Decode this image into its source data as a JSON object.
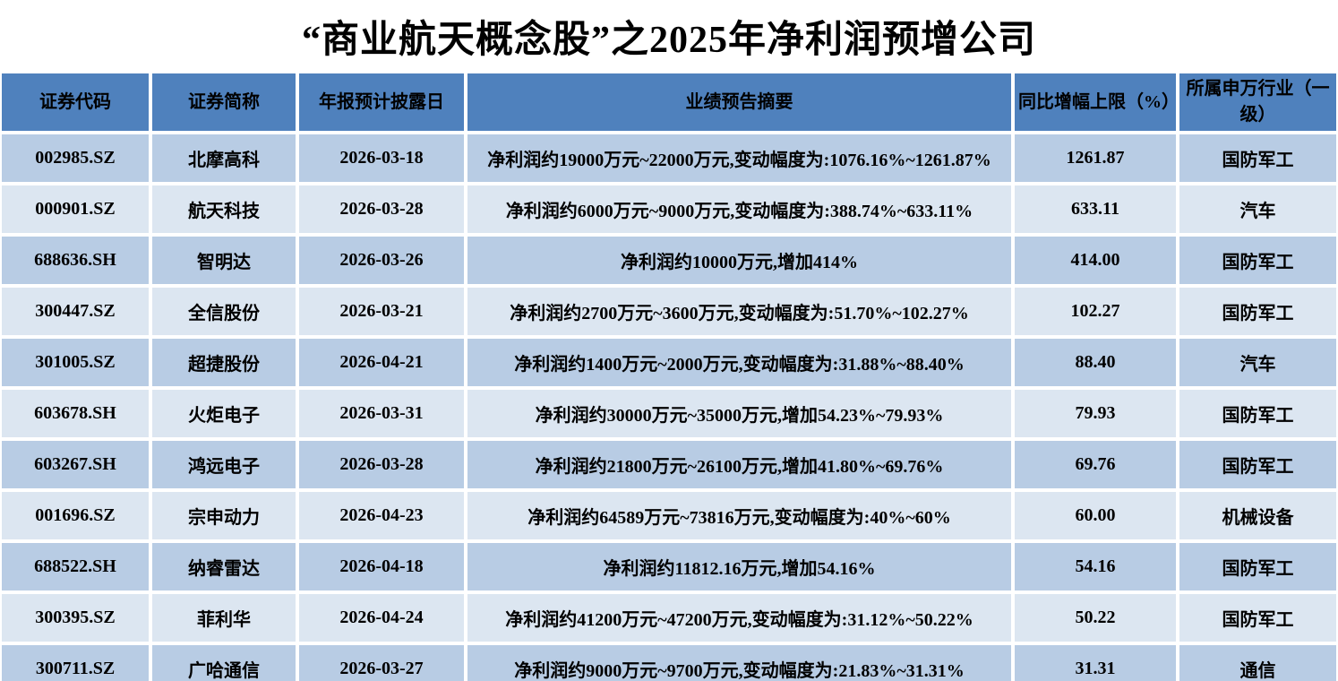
{
  "title": "“商业航天概念股”之2025年净利润预增公司",
  "colors": {
    "header_bg": "#4F81BD",
    "row_odd_bg": "#B8CCE4",
    "row_even_bg": "#DCE6F1",
    "gap": "#FFFFFF",
    "text": "#000000"
  },
  "table": {
    "columns": [
      {
        "key": "code",
        "label": "证券代码"
      },
      {
        "key": "name",
        "label": "证券简称"
      },
      {
        "key": "disclosure_date",
        "label": "年报预计披露日"
      },
      {
        "key": "forecast_summary",
        "label": "业绩预告摘要"
      },
      {
        "key": "yoy_upper_limit",
        "label": "同比增幅上限（%）"
      },
      {
        "key": "industry",
        "label": "所属申万行业（一级）"
      }
    ],
    "rows": [
      {
        "code": "002985.SZ",
        "name": "北摩高科",
        "disclosure_date": "2026-03-18",
        "forecast_summary": "净利润约19000万元~22000万元,变动幅度为:1076.16%~1261.87%",
        "yoy_upper_limit": "1261.87",
        "industry": "国防军工"
      },
      {
        "code": "000901.SZ",
        "name": "航天科技",
        "disclosure_date": "2026-03-28",
        "forecast_summary": "净利润约6000万元~9000万元,变动幅度为:388.74%~633.11%",
        "yoy_upper_limit": "633.11",
        "industry": "汽车"
      },
      {
        "code": "688636.SH",
        "name": "智明达",
        "disclosure_date": "2026-03-26",
        "forecast_summary": "净利润约10000万元,增加414%",
        "yoy_upper_limit": "414.00",
        "industry": "国防军工"
      },
      {
        "code": "300447.SZ",
        "name": "全信股份",
        "disclosure_date": "2026-03-21",
        "forecast_summary": "净利润约2700万元~3600万元,变动幅度为:51.70%~102.27%",
        "yoy_upper_limit": "102.27",
        "industry": "国防军工"
      },
      {
        "code": "301005.SZ",
        "name": "超捷股份",
        "disclosure_date": "2026-04-21",
        "forecast_summary": "净利润约1400万元~2000万元,变动幅度为:31.88%~88.40%",
        "yoy_upper_limit": "88.40",
        "industry": "汽车"
      },
      {
        "code": "603678.SH",
        "name": "火炬电子",
        "disclosure_date": "2026-03-31",
        "forecast_summary": "净利润约30000万元~35000万元,增加54.23%~79.93%",
        "yoy_upper_limit": "79.93",
        "industry": "国防军工"
      },
      {
        "code": "603267.SH",
        "name": "鸿远电子",
        "disclosure_date": "2026-03-28",
        "forecast_summary": "净利润约21800万元~26100万元,增加41.80%~69.76%",
        "yoy_upper_limit": "69.76",
        "industry": "国防军工"
      },
      {
        "code": "001696.SZ",
        "name": "宗申动力",
        "disclosure_date": "2026-04-23",
        "forecast_summary": "净利润约64589万元~73816万元,变动幅度为:40%~60%",
        "yoy_upper_limit": "60.00",
        "industry": "机械设备"
      },
      {
        "code": "688522.SH",
        "name": "纳睿雷达",
        "disclosure_date": "2026-04-18",
        "forecast_summary": "净利润约11812.16万元,增加54.16%",
        "yoy_upper_limit": "54.16",
        "industry": "国防军工"
      },
      {
        "code": "300395.SZ",
        "name": "菲利华",
        "disclosure_date": "2026-04-24",
        "forecast_summary": "净利润约41200万元~47200万元,变动幅度为:31.12%~50.22%",
        "yoy_upper_limit": "50.22",
        "industry": "国防军工"
      },
      {
        "code": "300711.SZ",
        "name": "广哈通信",
        "disclosure_date": "2026-03-27",
        "forecast_summary": "净利润约9000万元~9700万元,变动幅度为:21.83%~31.31%",
        "yoy_upper_limit": "31.31",
        "industry": "通信"
      }
    ]
  }
}
